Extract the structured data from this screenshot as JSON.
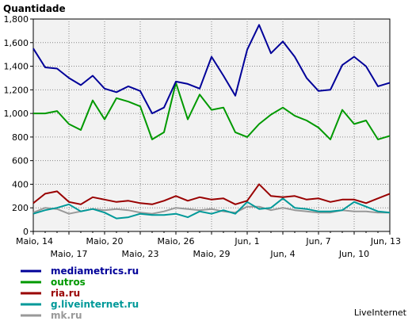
{
  "chart_data": {
    "type": "line",
    "title": "Quantidade",
    "credit": "LiveInternet",
    "ylim": [
      0,
      1800
    ],
    "yticks": [
      0,
      200,
      400,
      600,
      800,
      1000,
      1200,
      1400,
      1600,
      1800
    ],
    "ytick_labels": [
      "0",
      "200",
      "400",
      "600",
      "800",
      "1,000",
      "1,200",
      "1,400",
      "1,600",
      "1,800"
    ],
    "x_count": 31,
    "xtick_labels": [
      {
        "i": 0,
        "label": "Maio, 14",
        "row": 1
      },
      {
        "i": 3,
        "label": "Maio, 17",
        "row": 2
      },
      {
        "i": 6,
        "label": "Maio, 20",
        "row": 1
      },
      {
        "i": 9,
        "label": "Maio, 23",
        "row": 2
      },
      {
        "i": 12,
        "label": "Maio, 26",
        "row": 1
      },
      {
        "i": 15,
        "label": "Maio, 29",
        "row": 2
      },
      {
        "i": 18,
        "label": "Jun, 1",
        "row": 1
      },
      {
        "i": 21,
        "label": "Jun, 4",
        "row": 2
      },
      {
        "i": 24,
        "label": "Jun, 7",
        "row": 1
      },
      {
        "i": 27,
        "label": "Jun, 10",
        "row": 2
      },
      {
        "i": 30,
        "label": "Jun, 13",
        "row": 1
      }
    ],
    "grid": true,
    "series": [
      {
        "name": "mediametrics.ru",
        "color": "#000099",
        "values": [
          1550,
          1390,
          1380,
          1300,
          1240,
          1320,
          1210,
          1180,
          1230,
          1190,
          1000,
          1050,
          1270,
          1250,
          1210,
          1480,
          1320,
          1150,
          1540,
          1750,
          1510,
          1610,
          1480,
          1300,
          1190,
          1200,
          1410,
          1480,
          1400,
          1230,
          1260
        ]
      },
      {
        "name": "outros",
        "color": "#009900",
        "values": [
          1000,
          1000,
          1020,
          910,
          860,
          1110,
          950,
          1130,
          1100,
          1060,
          780,
          840,
          1260,
          950,
          1160,
          1030,
          1050,
          840,
          800,
          910,
          990,
          1050,
          980,
          940,
          880,
          780,
          1030,
          910,
          940,
          780,
          810
        ]
      },
      {
        "name": "ria.ru",
        "color": "#990000",
        "values": [
          240,
          320,
          340,
          250,
          230,
          290,
          270,
          250,
          260,
          240,
          230,
          260,
          300,
          260,
          290,
          270,
          280,
          230,
          260,
          400,
          300,
          290,
          300,
          270,
          280,
          250,
          270,
          270,
          240,
          280,
          320
        ]
      },
      {
        "name": "g.liveinternet.ru",
        "color": "#009999",
        "values": [
          150,
          180,
          200,
          230,
          170,
          190,
          160,
          110,
          120,
          150,
          140,
          140,
          150,
          120,
          170,
          150,
          180,
          150,
          250,
          190,
          200,
          280,
          200,
          190,
          170,
          170,
          180,
          250,
          210,
          170,
          160
        ]
      },
      {
        "name": "mk.ru",
        "color": "#999999",
        "values": [
          160,
          200,
          190,
          150,
          170,
          190,
          180,
          190,
          180,
          160,
          150,
          170,
          200,
          190,
          180,
          190,
          170,
          160,
          210,
          210,
          180,
          200,
          180,
          170,
          160,
          160,
          180,
          170,
          170,
          160,
          160
        ]
      }
    ]
  }
}
